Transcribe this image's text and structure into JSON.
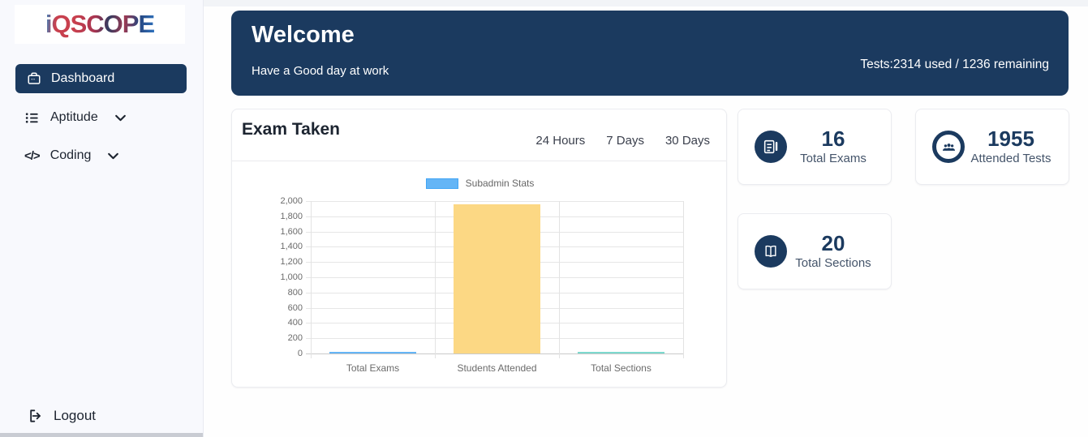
{
  "sidebar": {
    "logo": "iQSCOPE",
    "items": [
      {
        "label": "Dashboard",
        "icon": "briefcase-icon",
        "active": true
      },
      {
        "label": "Aptitude",
        "icon": "list-icon",
        "expandable": true
      },
      {
        "label": "Coding",
        "icon": "code-icon",
        "expandable": true
      }
    ],
    "logout_label": "Logout"
  },
  "banner": {
    "title": "Welcome",
    "subtitle": "Have a Good day at work",
    "usage": "Tests:2314 used / 1236 remaining"
  },
  "exam": {
    "title": "Exam Taken",
    "filters": [
      "24 Hours",
      "7 Days",
      "30 Days"
    ]
  },
  "chart_data": {
    "type": "bar",
    "series_label": "Subadmin Stats",
    "series_color": "#64B5F6",
    "series_border": "#42A5F5",
    "categories": [
      "Total Exams",
      "Students Attended",
      "Total Sections"
    ],
    "values": [
      16,
      1955,
      20
    ],
    "bar_colors": [
      "#64B5F6",
      "#FCD884",
      "#7CD9CE"
    ],
    "ylim": [
      0,
      2000
    ],
    "ytick_step": 200,
    "ytick_labels": [
      "0",
      "200",
      "400",
      "600",
      "800",
      "1,000",
      "1,200",
      "1,400",
      "1,600",
      "1,800",
      "2,000"
    ],
    "grid": true,
    "legend_position": "top",
    "title": "",
    "xlabel": "",
    "ylabel": ""
  },
  "stats": [
    {
      "value": "16",
      "label": "Total Exams",
      "icon": "exam-icon"
    },
    {
      "value": "1955",
      "label": "Attended Tests",
      "icon": "attendees-icon"
    },
    {
      "value": "20",
      "label": "Total Sections",
      "icon": "sections-icon"
    }
  ],
  "colors": {
    "navy": "#1B3A5F",
    "sidebar_bg": "#f8f9fd",
    "card_border": "#ebecf0"
  }
}
